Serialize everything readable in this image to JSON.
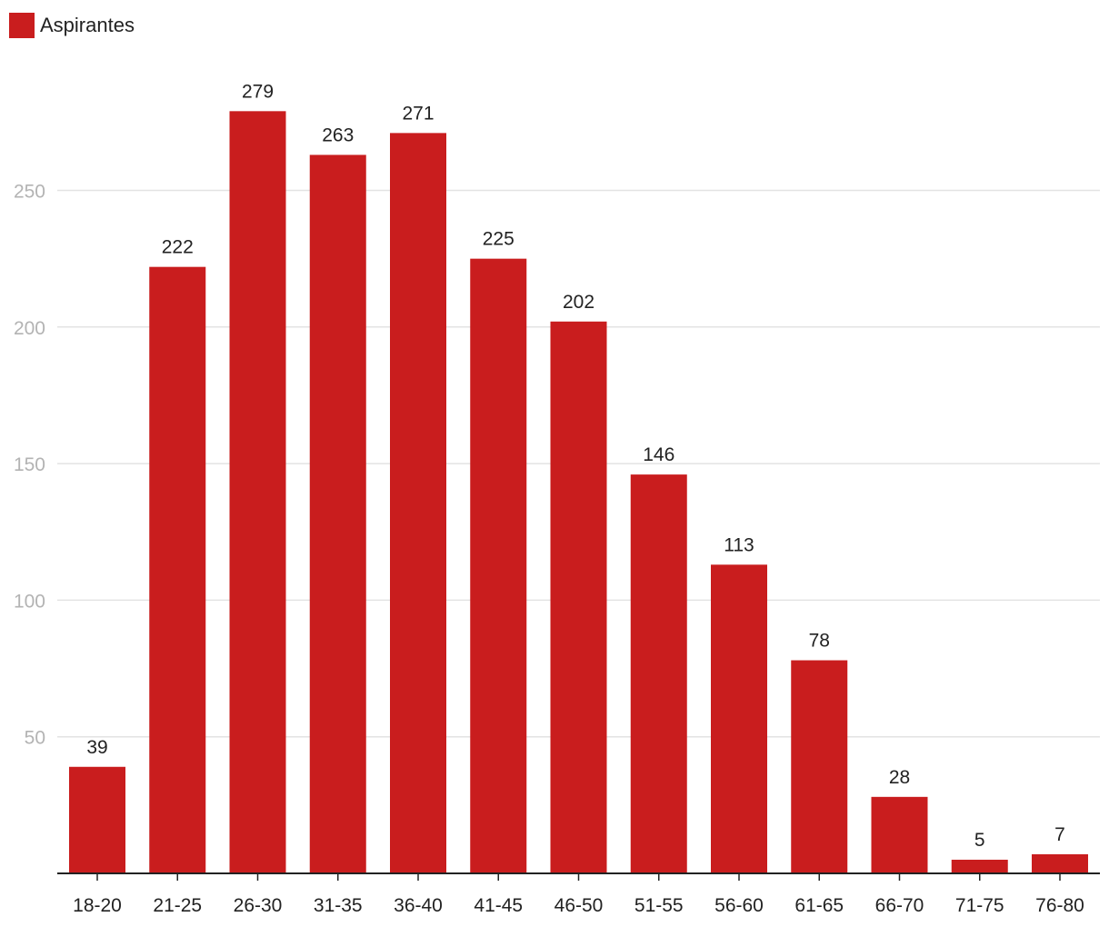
{
  "chart_data": {
    "type": "bar",
    "categories": [
      "18-20",
      "21-25",
      "26-30",
      "31-35",
      "36-40",
      "41-45",
      "46-50",
      "51-55",
      "56-60",
      "61-65",
      "66-70",
      "71-75",
      "76-80"
    ],
    "series": [
      {
        "name": "Aspirantes",
        "values": [
          39,
          222,
          279,
          263,
          271,
          225,
          202,
          146,
          113,
          78,
          28,
          5,
          7
        ],
        "color": "#c91d1e"
      }
    ],
    "ylim": [
      0,
      300
    ],
    "yticks": [
      50,
      100,
      150,
      200,
      250
    ],
    "grid": true,
    "legend_position": "top-left",
    "data_labels": true
  }
}
